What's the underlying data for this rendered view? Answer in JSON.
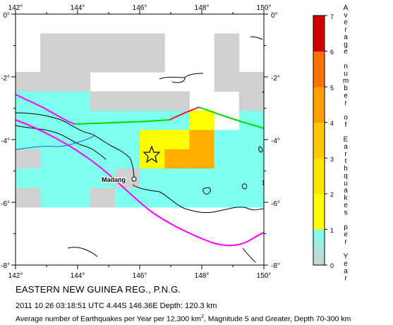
{
  "map": {
    "lon_ticks": [
      "142°",
      "144°",
      "146°",
      "148°",
      "150°"
    ],
    "lat_ticks_left": [
      "0°",
      "-2°",
      "-4°",
      "-6°",
      "-8°"
    ],
    "lat_ticks_right": [
      "0°",
      "-2°",
      "-4°",
      "-6°",
      "-8°"
    ],
    "lon_range": [
      142,
      150
    ],
    "lat_range": [
      -8,
      0
    ],
    "city": {
      "name": "Madang",
      "lon": 145.8,
      "lat": -5.2
    },
    "epicenter": {
      "lon": 146.36,
      "lat": -4.44,
      "symbol": "star"
    },
    "grid_cell_deg": 1,
    "grid_rows": [
      "..........",
      ".GGGGG..G.",
      ".GGGGG..G.",
      "GGG.....GG",
      "CCCGGGG..G",
      "CCCCCCCY.C",
      "CCCCCYYOCC",
      "GCCCCYOOCC",
      "CCCCGCCCCC",
      "GCCGCCCCCC",
      "..........",
      "..........",
      ".........."
    ],
    "grid_legend": {
      "G": "0 (no data shading)",
      "C": "0-1 per year",
      "Y": "1-3 per year",
      "O": "3-4 per year"
    }
  },
  "legend": {
    "title": "Average number of Earthquakes per Year",
    "ticks": [
      "0",
      "1",
      "2",
      "3",
      "4",
      "5",
      "6",
      "7"
    ],
    "colors": {
      "0": "#d0d0d0",
      "1": "#7fffee",
      "2": "#ffff00",
      "3": "#ffe000",
      "4": "#ffa000",
      "5": "#ff6000",
      "6": "#ff2000",
      "7": "#c00000"
    }
  },
  "captions": {
    "title": "EASTERN NEW GUINEA REG., P.N.G.",
    "event": "2011 10 26 03:18:51 UTC 4.44S 146.36E Depth: 120.3 km",
    "desc_before_sup": "Average number of Earthquakes per Year per 12,300 km",
    "desc_sup": "2",
    "desc_after_sup": ", Magnitude 5 and Greater, Depth 70-300 km"
  }
}
